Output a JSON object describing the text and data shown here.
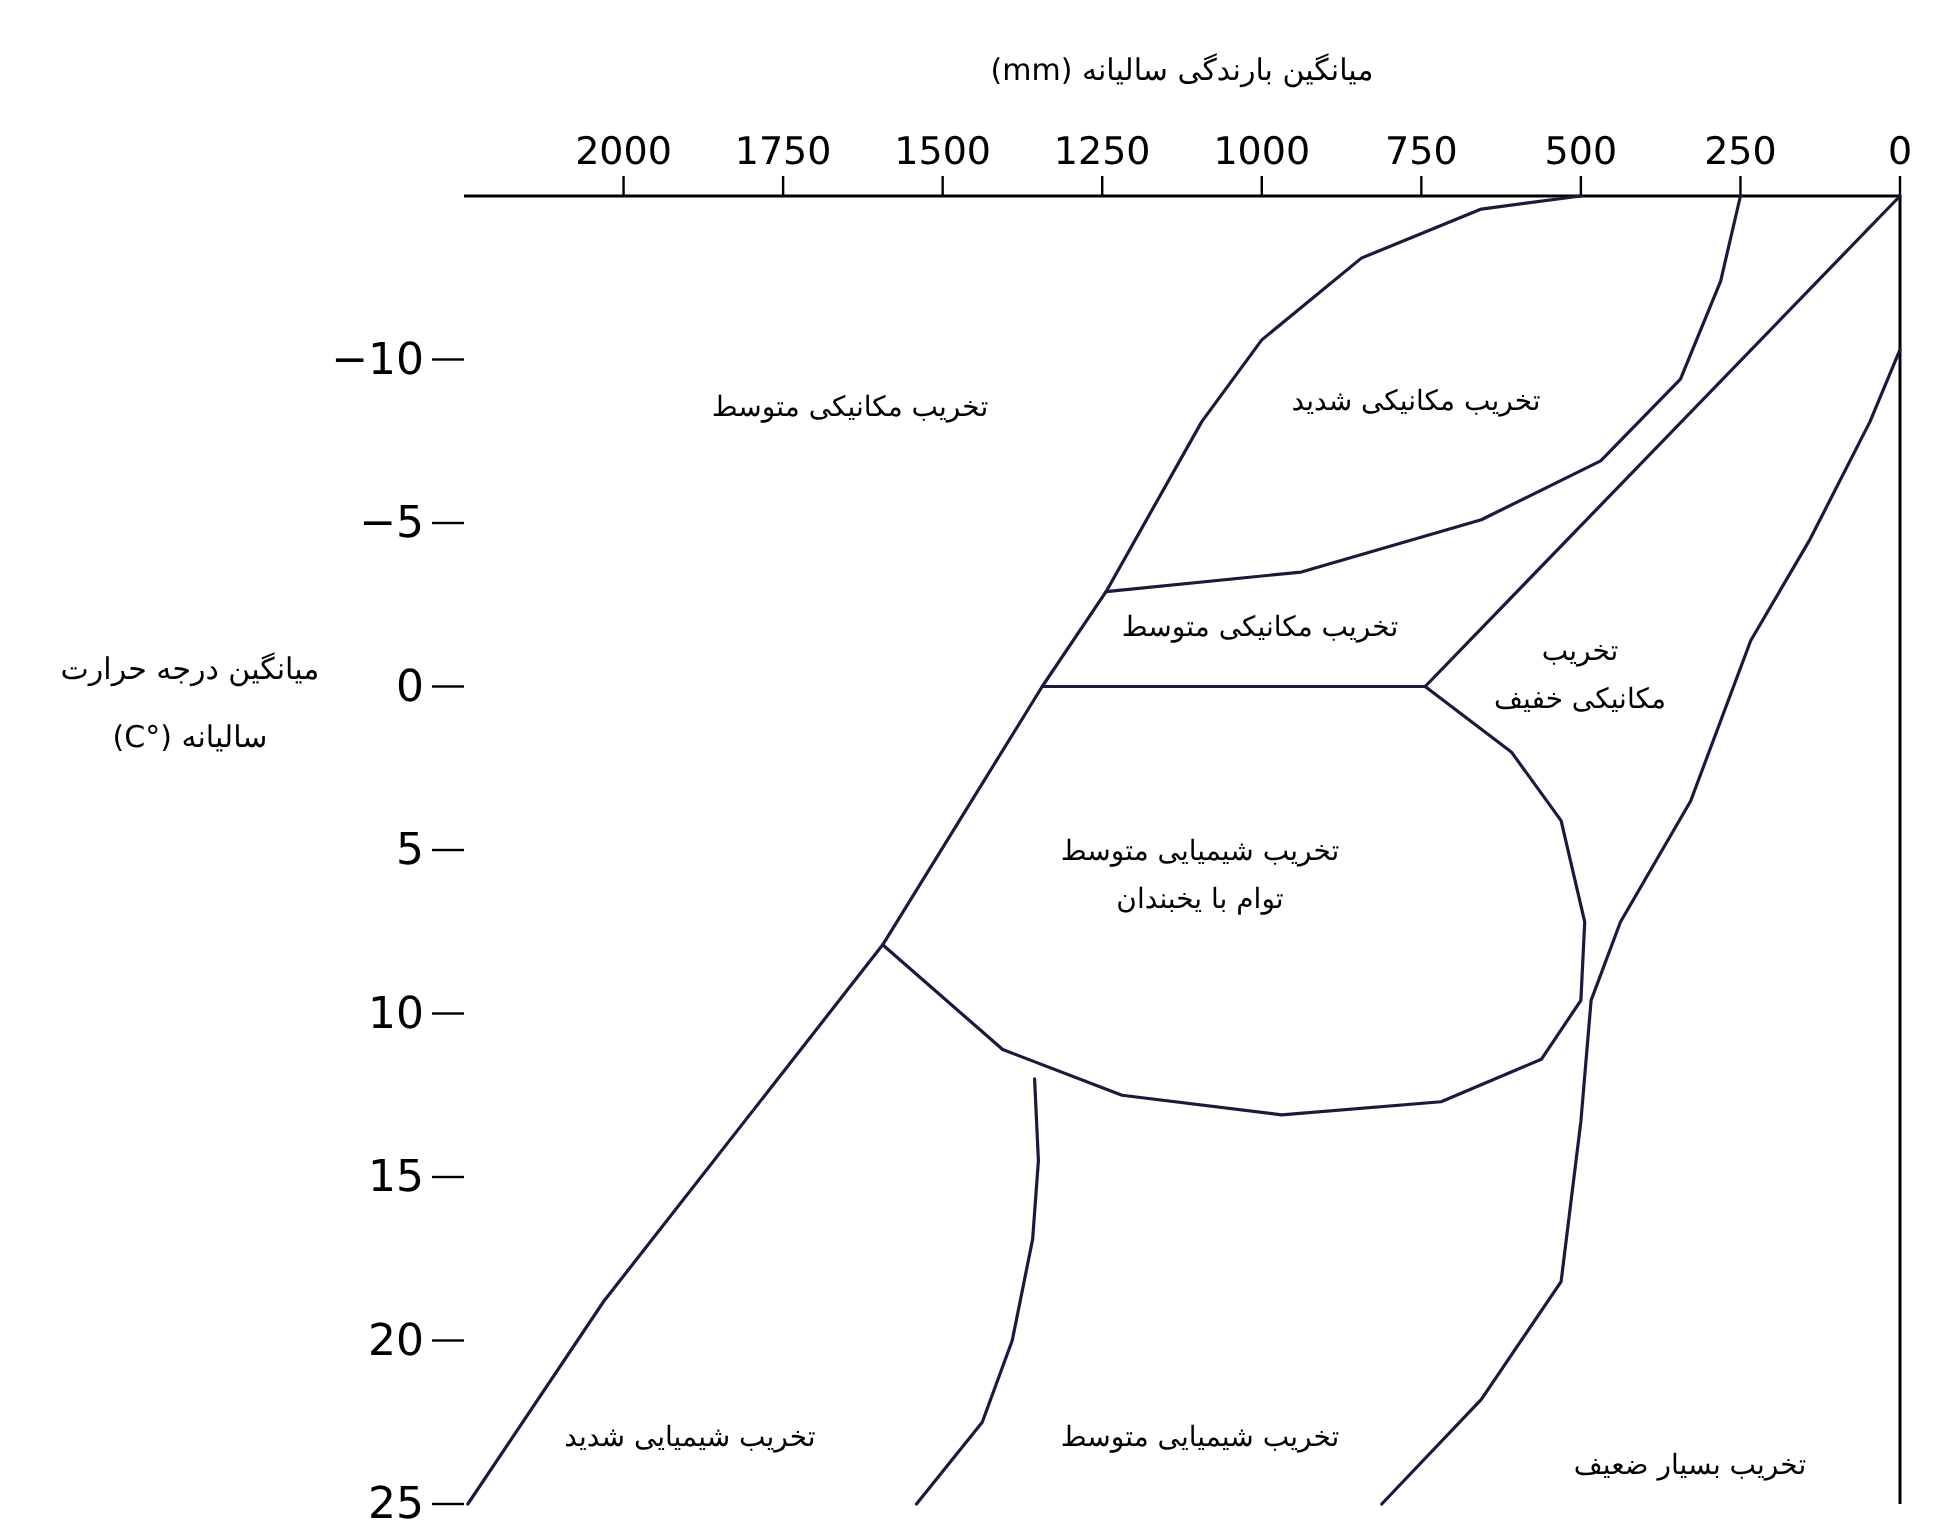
{
  "chart_data": {
    "type": "line",
    "xlabel": "میانگین بارندگی سالیانه (mm)",
    "ylabel": "میانگین درجه حرارت\nسالیانه (°C)",
    "xlim": [
      2250,
      0
    ],
    "xticks": [
      2000,
      1750,
      1500,
      1250,
      1000,
      750,
      500,
      250,
      0
    ],
    "ylim": [
      25,
      -15
    ],
    "yticks": [
      -10,
      -5,
      0,
      5,
      10,
      15,
      20,
      25
    ],
    "grid": false,
    "marker": "none",
    "line_style": "solid",
    "series": [
      {
        "color": "#1a1a40",
        "x": [
          2244,
          2031,
          1594,
          1344,
          1244,
          1094,
          1000,
          844,
          656,
          500
        ],
        "values": [
          25,
          18.8,
          7.9,
          0,
          -2.9,
          -8.1,
          -10.6,
          -13.1,
          -14.6,
          -15
        ]
      },
      {
        "color": "#1a1a40",
        "x": [
          1244,
          938,
          656,
          469,
          344,
          281,
          250
        ],
        "values": [
          -2.9,
          -3.5,
          -5.1,
          -6.9,
          -9.4,
          -12.4,
          -15
        ]
      },
      {
        "color": "#1a1a40",
        "x": [
          744,
          0
        ],
        "values": [
          0,
          -15
        ]
      },
      {
        "color": "#1a1a40",
        "x": [
          1344,
          744
        ],
        "values": [
          0,
          0
        ]
      },
      {
        "color": "#1a1a40",
        "x": [
          744,
          609,
          531,
          494,
          500,
          562,
          719,
          969,
          1219,
          1406,
          1594
        ],
        "values": [
          0,
          2,
          4.1,
          7.2,
          9.6,
          11.4,
          12.7,
          13.1,
          12.5,
          11.1,
          7.9
        ]
      },
      {
        "color": "#1a1a40",
        "x": [
          0,
          47,
          141,
          234,
          328,
          438,
          484,
          500,
          531,
          656,
          812
        ],
        "values": [
          -10.3,
          -8.1,
          -4.5,
          -1.4,
          3.5,
          7.2,
          9.6,
          13.3,
          18.2,
          21.8,
          25
        ]
      },
      {
        "color": "#1a1a40",
        "x": [
          1356,
          1350,
          1359,
          1391,
          1438,
          1541
        ],
        "values": [
          12,
          14.5,
          16.9,
          20,
          22.5,
          25
        ]
      }
    ],
    "annotations": [
      "تخریب مکانیکی متوسط",
      "تخریب مکانیکی شدید",
      "تخریب مکانیکی متوسط",
      "تخریب\nمکانیکی خفیف",
      "تخریب شیمیایی متوسط\nتوام با یخبندان",
      "تخریب شیمیایی شدید",
      "تخریب شیمیایی متوسط",
      "تخریب بسیار ضعیف"
    ]
  }
}
